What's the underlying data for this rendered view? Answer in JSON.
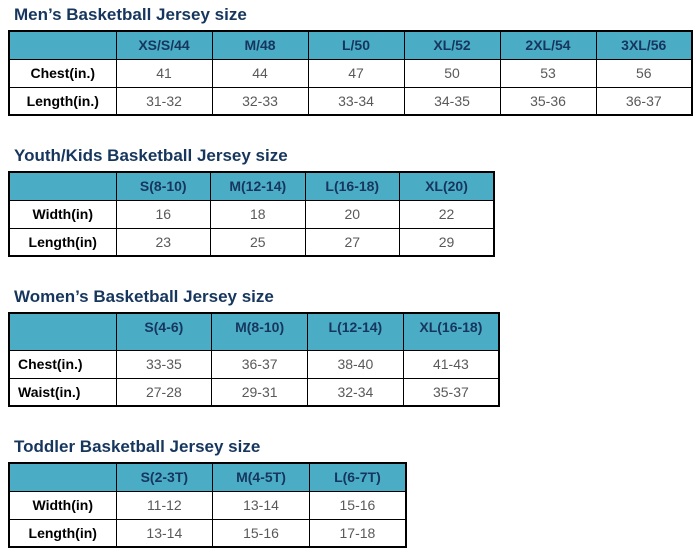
{
  "colors": {
    "header_bg": "#4BACC6",
    "title_text": "#17365D",
    "header_text": "#17365D",
    "label_text": "#000000",
    "value_text": "#595959",
    "border_color": "#000000",
    "page_bg": "#ffffff"
  },
  "sections": [
    {
      "title": "Men’s Basketball Jersey size",
      "columns": [
        "XS/S/44",
        "M/48",
        "L/50",
        "XL/52",
        "2XL/54",
        "3XL/56"
      ],
      "rows": [
        {
          "label": "Chest(in.)",
          "values": [
            "41",
            "44",
            "47",
            "50",
            "53",
            "56"
          ]
        },
        {
          "label": "Length(in.)",
          "values": [
            "31-32",
            "32-33",
            "33-34",
            "34-35",
            "35-36",
            "36-37"
          ]
        }
      ]
    },
    {
      "title": "Youth/Kids Basketball Jersey size",
      "columns": [
        "S(8-10)",
        "M(12-14)",
        "L(16-18)",
        "XL(20)"
      ],
      "rows": [
        {
          "label": "Width(in)",
          "values": [
            "16",
            "18",
            "20",
            "22"
          ]
        },
        {
          "label": "Length(in)",
          "values": [
            "23",
            "25",
            "27",
            "29"
          ]
        }
      ]
    },
    {
      "title": "Women’s Basketball Jersey size",
      "columns": [
        "S(4-6)",
        "M(8-10)",
        "L(12-14)",
        "XL(16-18)"
      ],
      "rows": [
        {
          "label": "Chest(in.)",
          "values": [
            "33-35",
            "36-37",
            "38-40",
            "41-43"
          ]
        },
        {
          "label": "Waist(in.)",
          "values": [
            "27-28",
            "29-31",
            "32-34",
            "35-37"
          ]
        }
      ]
    },
    {
      "title": "Toddler Basketball Jersey size",
      "columns": [
        "S(2-3T)",
        "M(4-5T)",
        "L(6-7T)"
      ],
      "rows": [
        {
          "label": "Width(in)",
          "values": [
            "11-12",
            "13-14",
            "15-16"
          ]
        },
        {
          "label": "Length(in)",
          "values": [
            "13-14",
            "15-16",
            "17-18"
          ]
        }
      ]
    }
  ]
}
